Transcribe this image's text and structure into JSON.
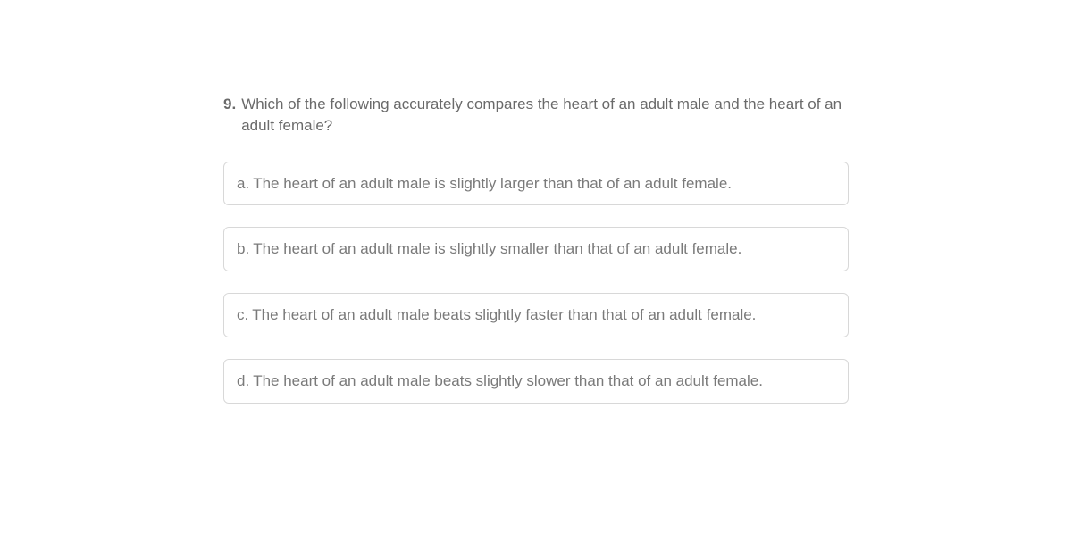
{
  "question": {
    "number": "9.",
    "text": "Which of the following accurately compares the heart of an adult male and the heart of an adult female?"
  },
  "answers": [
    {
      "letter": "a.",
      "text": "The heart of an adult male is slightly larger than that of an adult female."
    },
    {
      "letter": "b.",
      "text": "The heart of an adult male is slightly smaller than that of an adult female."
    },
    {
      "letter": "c.",
      "text": "The heart of an adult male beats slightly faster than that of an adult female."
    },
    {
      "letter": "d.",
      "text": "The heart of an adult male beats slightly slower than that of an adult female."
    }
  ]
}
